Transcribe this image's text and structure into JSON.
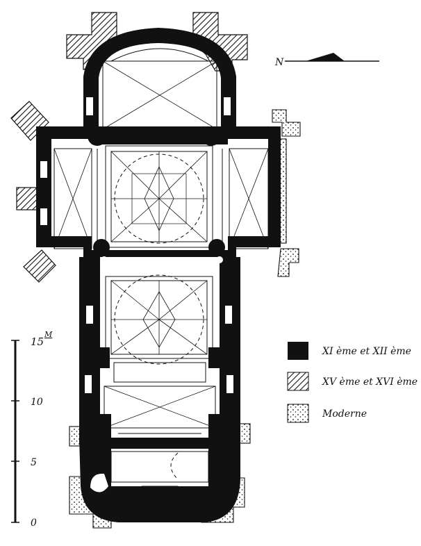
{
  "compass": {
    "label": "N"
  },
  "scale": {
    "unit_label": "M",
    "ticks": [
      {
        "label": "0"
      },
      {
        "label": "5"
      },
      {
        "label": "10"
      },
      {
        "label": "15"
      }
    ]
  },
  "legend": [
    {
      "id": "romanesque",
      "label": "XI ème et XII ème",
      "pattern": "solid"
    },
    {
      "id": "gothic",
      "label": "XV ème et XVI ème",
      "pattern": "hatched"
    },
    {
      "id": "modern",
      "label": "Moderne",
      "pattern": "dotted"
    }
  ],
  "colors": {
    "ink": "#111111",
    "paper": "#ffffff"
  }
}
